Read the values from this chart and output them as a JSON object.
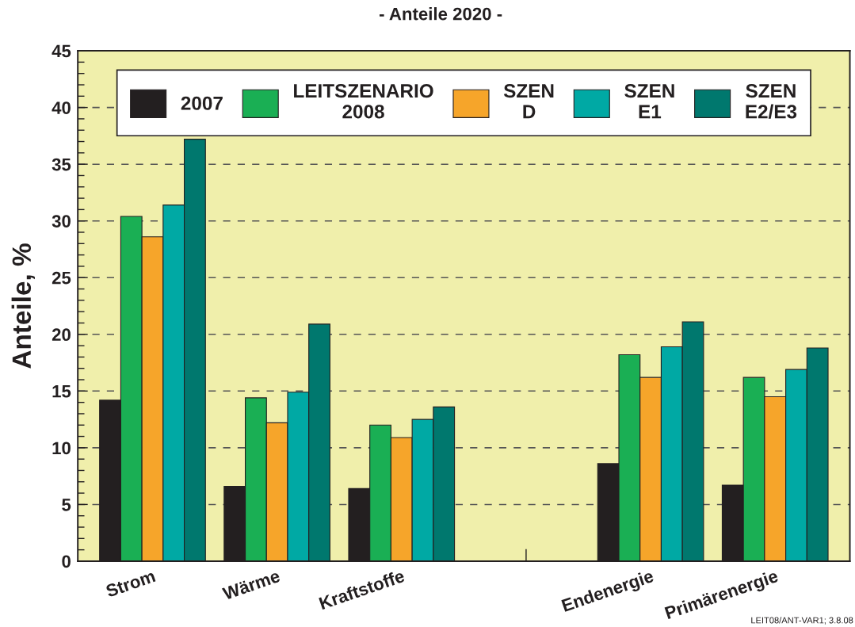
{
  "chart_data": {
    "type": "bar",
    "title": "- Anteile 2020 -",
    "ylabel": "Anteile, %",
    "categories": [
      "Strom",
      "Wärme",
      "Kraftstoffe",
      null,
      "Endenergie",
      "Primärenergie"
    ],
    "series": [
      {
        "name": "2007",
        "color": "#231f20",
        "values": [
          14.2,
          6.6,
          6.4,
          null,
          8.6,
          6.7
        ]
      },
      {
        "name": "LEITSZENARIO\n2008",
        "color": "#1aaf54",
        "values": [
          30.4,
          14.4,
          12.0,
          null,
          18.2,
          16.2
        ]
      },
      {
        "name": "SZEN\nD",
        "color": "#f6a52a",
        "values": [
          28.6,
          12.2,
          10.9,
          null,
          16.2,
          14.5
        ]
      },
      {
        "name": "SZEN\nE1",
        "color": "#00a9a4",
        "values": [
          31.4,
          14.9,
          12.5,
          null,
          18.9,
          16.9
        ]
      },
      {
        "name": "SZEN\nE2/E3",
        "color": "#00786e",
        "values": [
          37.2,
          20.9,
          13.6,
          null,
          21.1,
          18.8
        ]
      }
    ],
    "ylim": [
      0,
      45
    ],
    "yticks": [
      0,
      5,
      10,
      15,
      20,
      25,
      30,
      35,
      40,
      45
    ],
    "grid": "y",
    "legend": "top",
    "annotations": [
      "LEIT08/ANT-VAR1; 3.8.08"
    ]
  }
}
